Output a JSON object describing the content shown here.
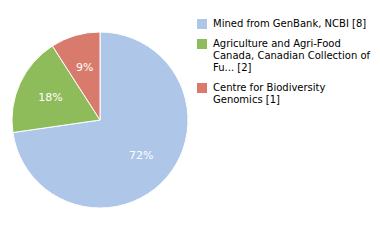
{
  "chart_data": {
    "type": "pie",
    "categories": [
      "Mined from GenBank, NCBI [8]",
      "Agriculture and Agri-Food\nCanada, Canadian Collection of\nFu... [2]",
      "Centre for Biodiversity\nGenomics [1]"
    ],
    "values": [
      72,
      18,
      9
    ],
    "value_labels": [
      "72%",
      "18%",
      "9%"
    ],
    "colors": [
      "#aec6e8",
      "#8fbc5a",
      "#d97b6c"
    ],
    "data_labels": true,
    "legend": "right"
  }
}
